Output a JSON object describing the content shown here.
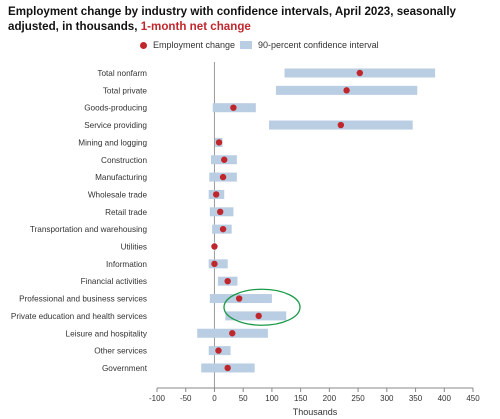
{
  "title": {
    "main": "Employment change by industry with confidence intervals, April 2023, seasonally adjusted, in thousands,",
    "highlight": "1-month net change"
  },
  "legend": {
    "point_label": "Employment change",
    "interval_label": "90-percent confidence interval"
  },
  "colors": {
    "point": "#c0272d",
    "interval": "#b9cde3",
    "circle_annotation": "#1a9a48",
    "zero_line": "#9a9a9a"
  },
  "chart_data": {
    "type": "scatter",
    "orientation": "horizontal",
    "title": "Employment change by industry with confidence intervals, April 2023, seasonally adjusted, in thousands, 1-month net change",
    "xlabel": "Thousands",
    "ylabel": "",
    "xlim": [
      -100,
      450
    ],
    "xticks": [
      -100,
      -50,
      0,
      50,
      100,
      150,
      200,
      250,
      300,
      350,
      400,
      450
    ],
    "grid": false,
    "legend_position": "top",
    "categories": [
      "Total nonfarm",
      "Total private",
      "Goods-producing",
      "Service providing",
      "Mining and logging",
      "Construction",
      "Manufacturing",
      "Wholesale trade",
      "Retail trade",
      "Transportation and warehousing",
      "Utilities",
      "Information",
      "Financial activities",
      "Professional and business services",
      "Private education and health services",
      "Leisure and hospitality",
      "Other services",
      "Government"
    ],
    "series": [
      {
        "name": "Employment change",
        "values": [
          253,
          230,
          33,
          220,
          8,
          17,
          15,
          3,
          10,
          15,
          0,
          0,
          23,
          43,
          77,
          31,
          7,
          23
        ]
      },
      {
        "name": "90-percent confidence interval",
        "low": [
          122,
          107,
          -3,
          95,
          1,
          -6,
          -9,
          -10,
          -8,
          -4,
          -1,
          -10,
          6,
          -8,
          19,
          -30,
          -10,
          -23
        ],
        "high": [
          384,
          353,
          72,
          345,
          14,
          39,
          39,
          17,
          33,
          30,
          1,
          23,
          40,
          100,
          125,
          93,
          28,
          70
        ]
      }
    ],
    "annotations": [
      {
        "type": "circle",
        "around": [
          "Professional and business services",
          "Private education and health services"
        ]
      }
    ]
  }
}
